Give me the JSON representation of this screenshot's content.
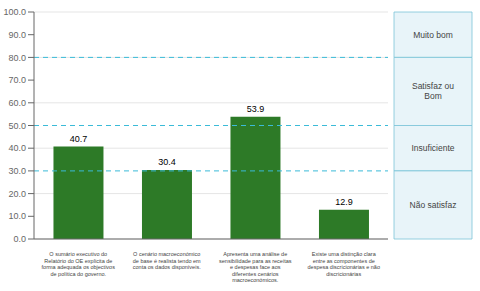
{
  "chart_data": {
    "type": "bar",
    "categories": [
      "O sumário executivo do\nRelatório do OE explicita de\nforma adequada os objectivos\nde política do governo.",
      "O cenário macroeconómico\nde base é realista tendo em\nconta os dados disponíveis.",
      "Apresenta uma análise de\nsensibilidade para as receitas\ne despesas face aos\ndiferentes cenários\nmacroeconómicos.",
      "Existe uma distinção clara\nentre as componentes de\ndespesa discricionárias e não\ndiscricionárias"
    ],
    "values": [
      40.7,
      30.4,
      53.9,
      12.9
    ],
    "color": "#2d7a27",
    "ylim": [
      0,
      100
    ],
    "yticks": [
      {
        "value": 0,
        "label": "0.0"
      },
      {
        "value": 10,
        "label": "10.0"
      },
      {
        "value": 20,
        "label": "20.0"
      },
      {
        "value": 30,
        "label": "30.0"
      },
      {
        "value": 40,
        "label": "40.0"
      },
      {
        "value": 50,
        "label": "50.0"
      },
      {
        "value": 60,
        "label": "60.0"
      },
      {
        "value": 70,
        "label": "70.0"
      },
      {
        "value": 80,
        "label": "80.0"
      },
      {
        "value": 90,
        "label": "90.0"
      },
      {
        "value": 100,
        "label": "100.0"
      }
    ],
    "grid": true,
    "data_labels": true,
    "reference_lines": [
      {
        "value": 30,
        "line_style": "dashed",
        "color": "#3bbbd8"
      },
      {
        "value": 50,
        "line_style": "dashed",
        "color": "#3bbbd8"
      },
      {
        "value": 80,
        "line_style": "dashed",
        "color": "#3bbbd8"
      }
    ],
    "bands": [
      {
        "label": "Muito bom",
        "ymin": 80,
        "ymax": 100,
        "color": "#e8f4f9"
      },
      {
        "label": "Satisfaz ou\nBom",
        "ymin": 50,
        "ymax": 80,
        "color": "#e8f4f9"
      },
      {
        "label": "Insuficiente",
        "ymin": 30,
        "ymax": 50,
        "color": "#e8f4f9"
      },
      {
        "label": "Não satisfaz",
        "ymin": 0,
        "ymax": 30,
        "color": "#e8f4f9"
      }
    ]
  }
}
